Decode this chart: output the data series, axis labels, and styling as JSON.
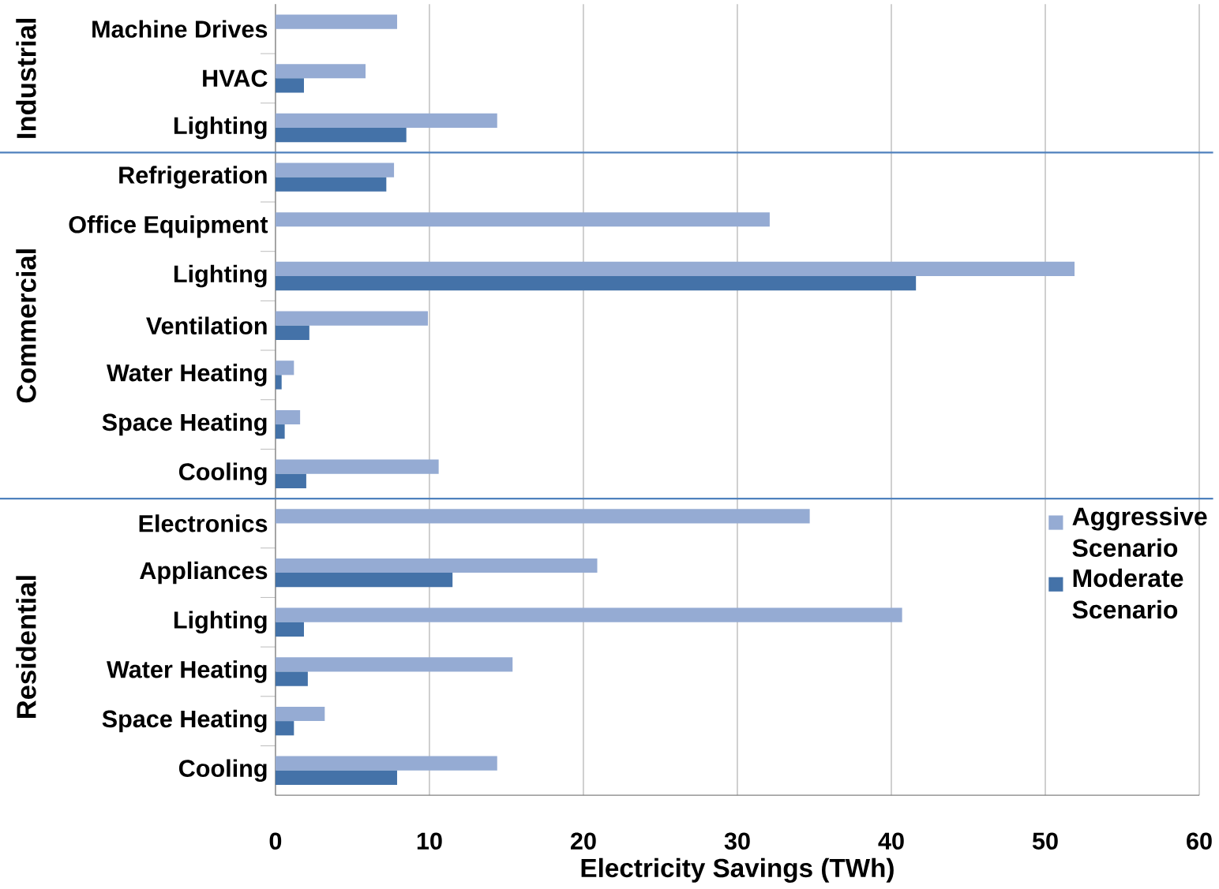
{
  "chart_data": {
    "type": "bar",
    "orientation": "horizontal",
    "xlabel": "Electricity Savings (TWh)",
    "categories": [
      "Machine Drives",
      "HVAC",
      "Lighting",
      "Refrigeration",
      "Office Equipment",
      "Lighting",
      "Ventilation",
      "Water Heating",
      "Space Heating",
      "Cooling",
      "Electronics",
      "Appliances",
      "Lighting",
      "Water Heating",
      "Space Heating",
      "Cooling"
    ],
    "series": [
      {
        "name": "Aggressive Scenario",
        "color": "#95abd3",
        "values": [
          7.9,
          5.85,
          14.4,
          7.7,
          32.1,
          51.9,
          9.9,
          1.2,
          1.6,
          10.6,
          34.7,
          20.9,
          40.7,
          15.4,
          3.2,
          14.4
        ]
      },
      {
        "name": "Moderate Scenario",
        "color": "#4472a8",
        "values": [
          null,
          1.85,
          8.5,
          7.2,
          null,
          41.6,
          2.2,
          0.4,
          0.6,
          2.0,
          null,
          11.5,
          1.85,
          2.1,
          1.2,
          7.9
        ]
      }
    ],
    "xlim": [
      0,
      60
    ],
    "xticks": [
      0,
      10,
      20,
      30,
      40,
      50,
      60
    ],
    "grid": "x",
    "legend": "right",
    "annotations": [
      "Industrial",
      "Commercial",
      "Residential"
    ]
  }
}
